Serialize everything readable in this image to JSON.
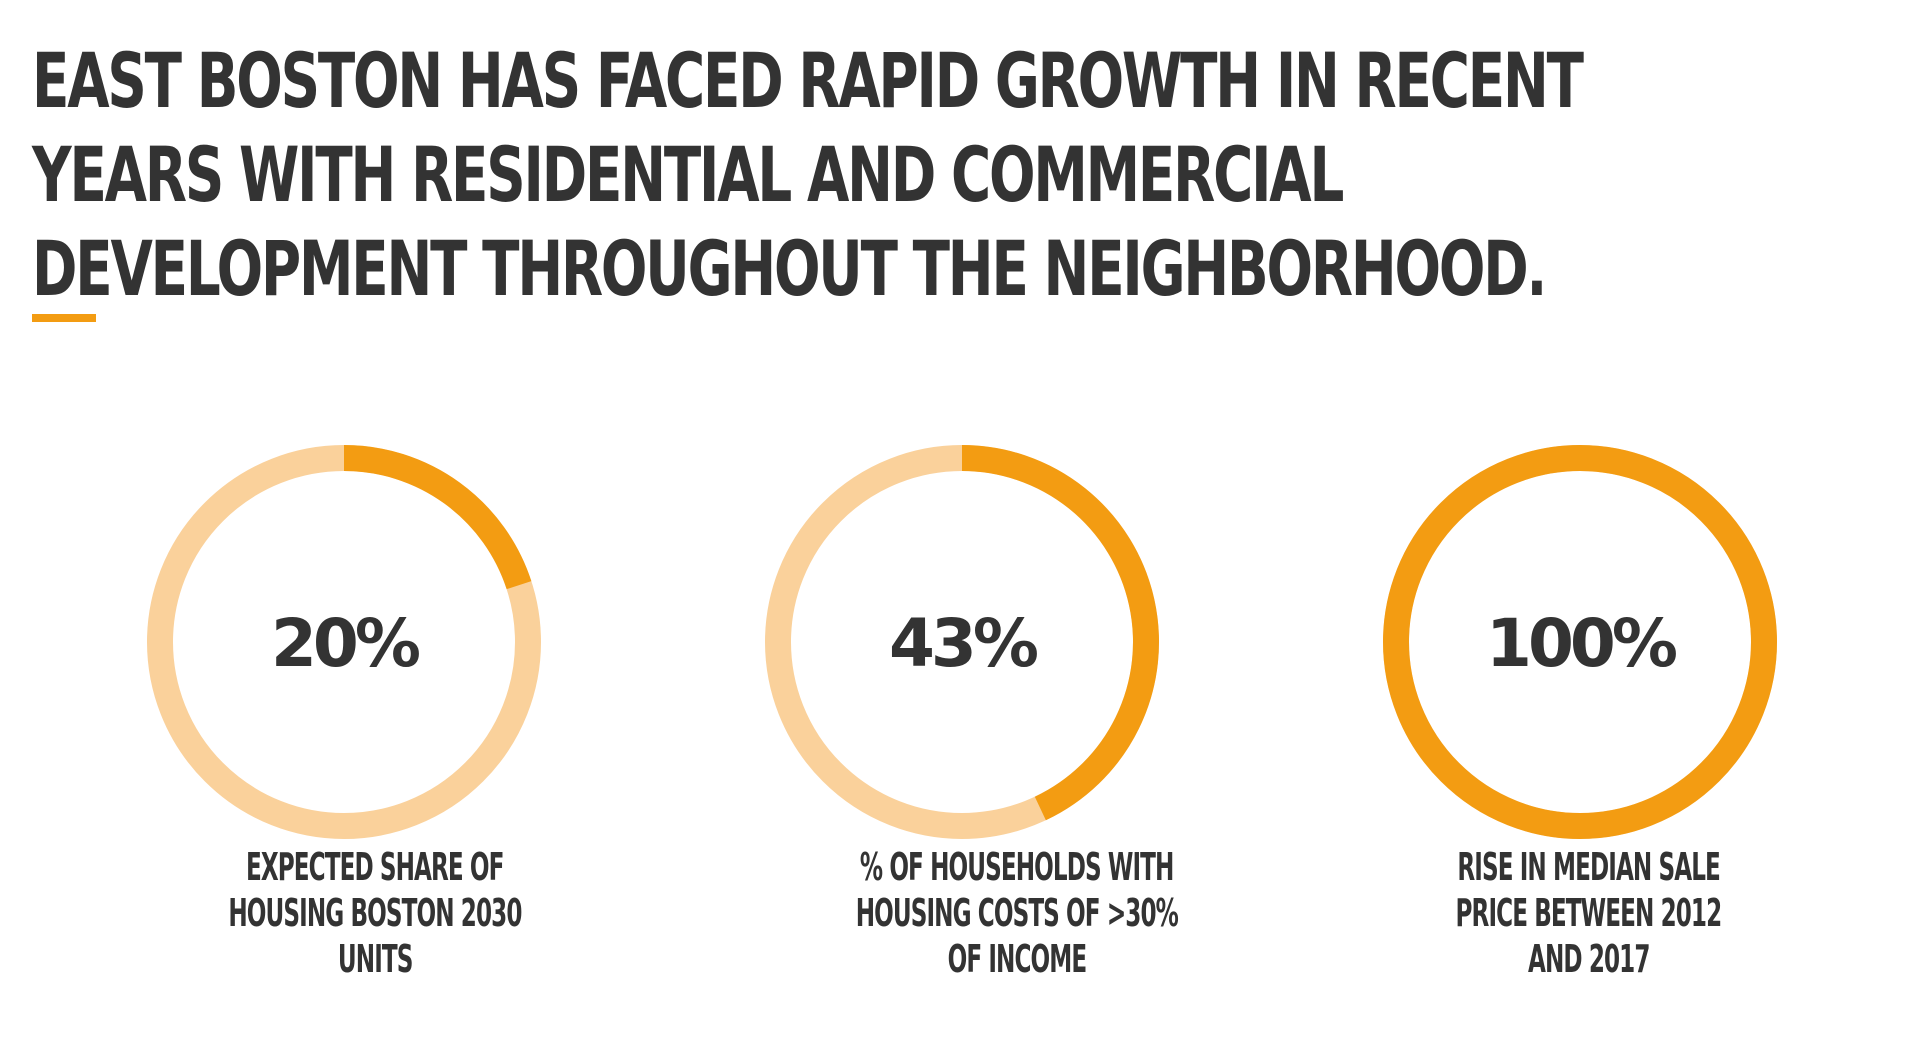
{
  "headline": {
    "lines": [
      "EAST BOSTON HAS FACED RAPID GROWTH IN RECENT",
      "YEARS WITH RESIDENTIAL AND COMMERCIAL",
      "DEVELOPMENT THROUGHOUT THE NEIGHBORHOOD."
    ]
  },
  "colors": {
    "accent": "#f39c12",
    "track": "#fad19b",
    "text": "#333333"
  },
  "chart_data": [
    {
      "type": "pie",
      "style": "donut",
      "value": 20,
      "value_label": "20%",
      "label_lines": [
        "EXPECTED SHARE OF",
        "HOUSING BOSTON 2030",
        "UNITS"
      ]
    },
    {
      "type": "pie",
      "style": "donut",
      "value": 43,
      "value_label": "43%",
      "label_lines": [
        "% OF HOUSEHOLDS WITH",
        "HOUSING COSTS OF >30%",
        "OF INCOME"
      ]
    },
    {
      "type": "pie",
      "style": "donut",
      "value": 100,
      "value_label": "100%",
      "label_lines": [
        "RISE IN MEDIAN SALE",
        "PRICE BETWEEN 2012",
        "AND 2017"
      ]
    }
  ]
}
